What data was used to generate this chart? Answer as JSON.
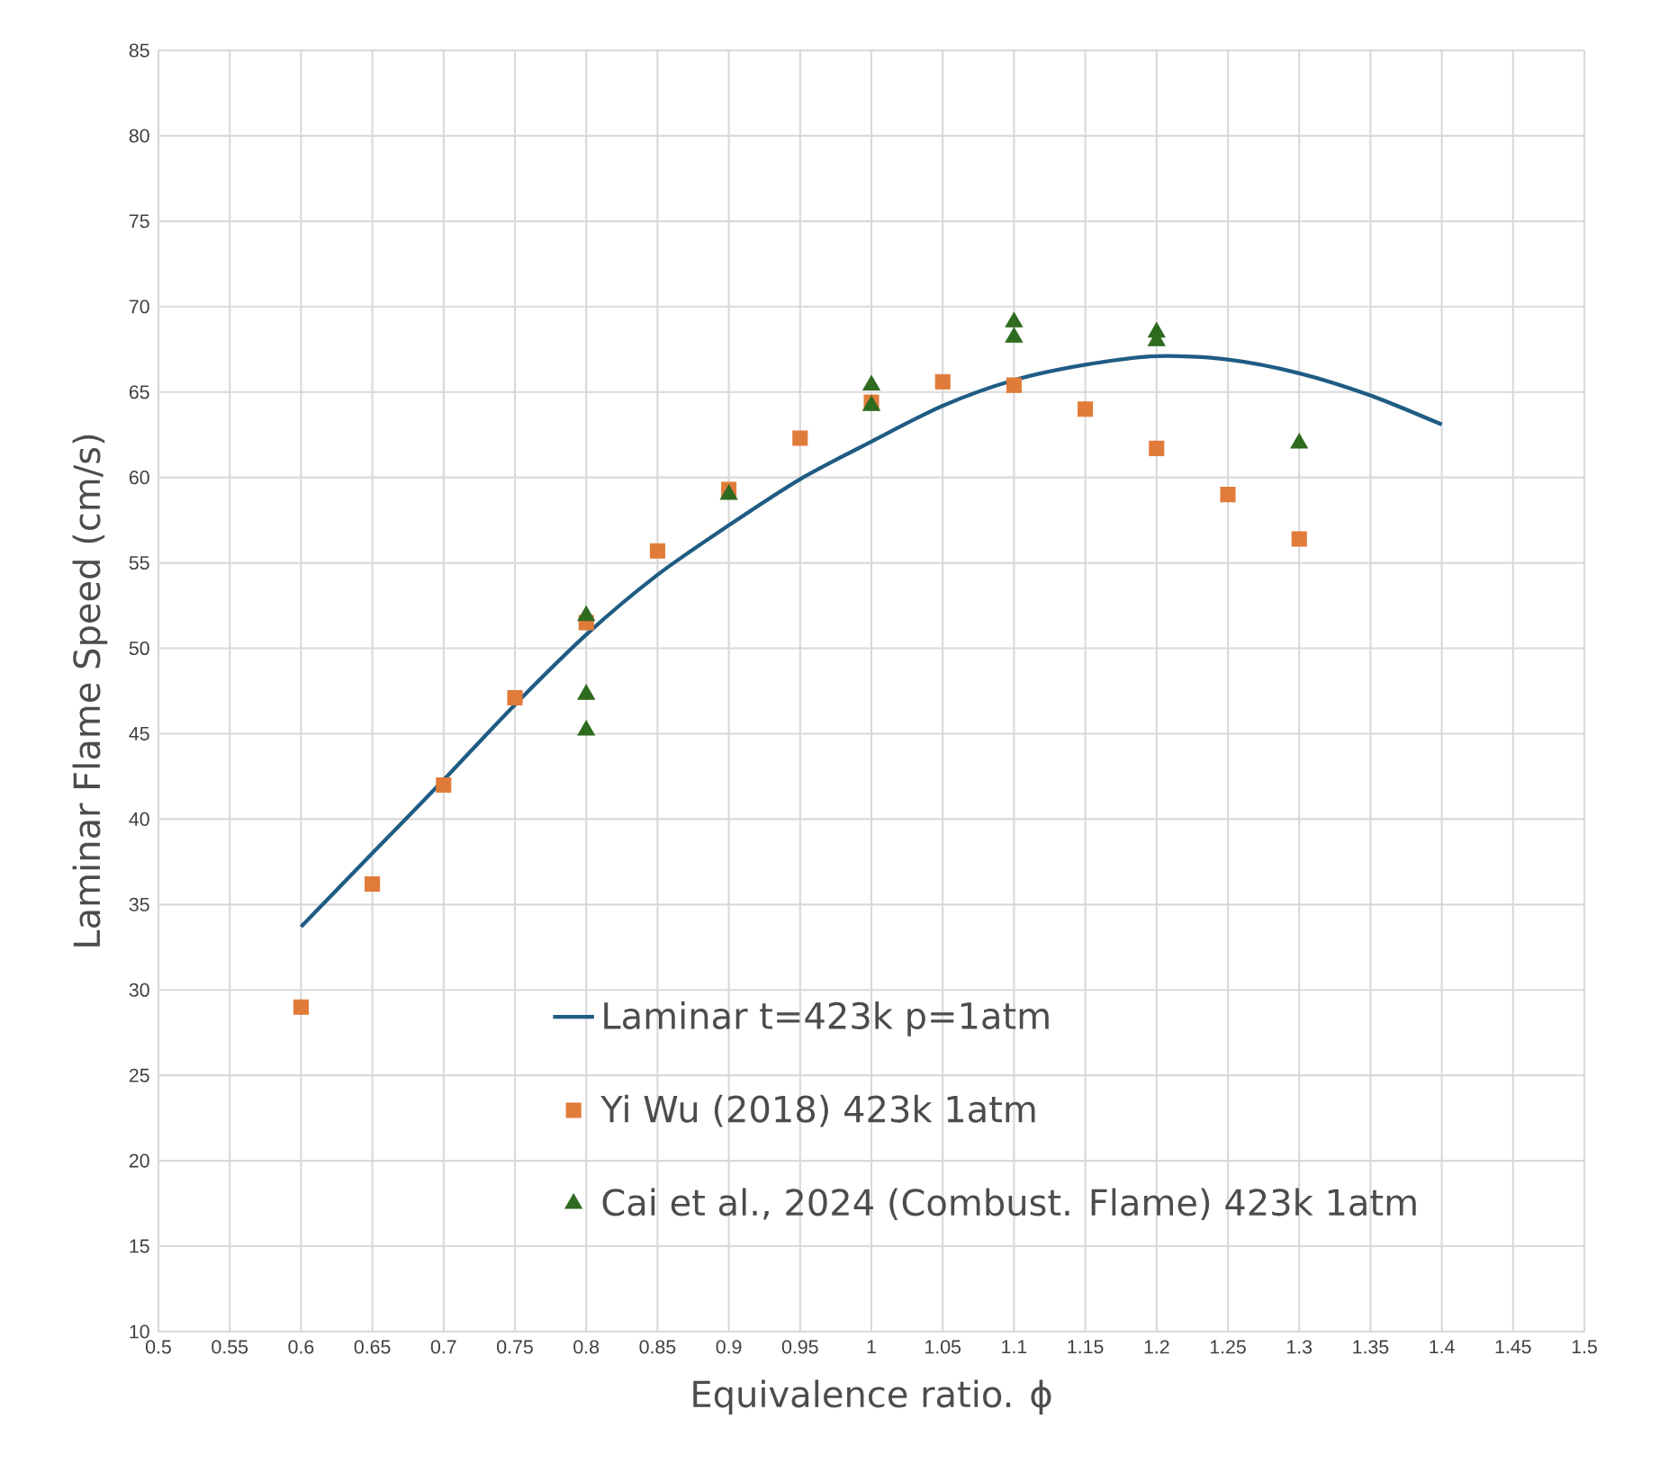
{
  "chart_data": {
    "type": "scatter",
    "xlabel": "Equivalence ratio. ϕ",
    "ylabel": "Laminar Flame Speed (cm/s)",
    "xlim": [
      0.5,
      1.5
    ],
    "ylim": [
      10,
      85
    ],
    "xticks": [
      {
        "value": 0.5,
        "label": "0.5"
      },
      {
        "value": 0.55,
        "label": "0.55"
      },
      {
        "value": 0.6,
        "label": "0.6"
      },
      {
        "value": 0.65,
        "label": "0.65"
      },
      {
        "value": 0.7,
        "label": "0.7"
      },
      {
        "value": 0.75,
        "label": "0.75"
      },
      {
        "value": 0.8,
        "label": "0.8"
      },
      {
        "value": 0.85,
        "label": "0.85"
      },
      {
        "value": 0.9,
        "label": "0.9"
      },
      {
        "value": 0.95,
        "label": "0.95"
      },
      {
        "value": 1,
        "label": "1"
      },
      {
        "value": 1.05,
        "label": "1.05"
      },
      {
        "value": 1.1,
        "label": "1.1"
      },
      {
        "value": 1.15,
        "label": "1.15"
      },
      {
        "value": 1.2,
        "label": "1.2"
      },
      {
        "value": 1.25,
        "label": "1.25"
      },
      {
        "value": 1.3,
        "label": "1.3"
      },
      {
        "value": 1.35,
        "label": "1.35"
      },
      {
        "value": 1.4,
        "label": "1.4"
      },
      {
        "value": 1.45,
        "label": "1.45"
      },
      {
        "value": 1.5,
        "label": "1.5"
      }
    ],
    "yticks": [
      10,
      15,
      20,
      25,
      30,
      35,
      40,
      45,
      50,
      55,
      60,
      65,
      70,
      75,
      80,
      85
    ],
    "grid": true,
    "legend": "bottom right",
    "series": [
      {
        "name": "Laminar t=423k p=1atm",
        "type": "line",
        "marker": "none",
        "color": "#1f5c84",
        "x": [
          0.6,
          0.65,
          0.7,
          0.75,
          0.8,
          0.85,
          0.9,
          0.95,
          1.0,
          1.05,
          1.1,
          1.15,
          1.2,
          1.25,
          1.3,
          1.35,
          1.4
        ],
        "values": [
          33.7,
          38.0,
          42.3,
          46.7,
          50.8,
          54.3,
          57.2,
          59.9,
          62.1,
          64.2,
          65.7,
          66.6,
          67.1,
          66.9,
          66.1,
          64.8,
          63.1
        ]
      },
      {
        "name": "Yi Wu (2018) 423k 1atm",
        "marker": "square",
        "color": "#e07b39",
        "x": [
          0.6,
          0.65,
          0.7,
          0.75,
          0.8,
          0.85,
          0.9,
          0.95,
          1.0,
          1.05,
          1.1,
          1.15,
          1.2,
          1.25,
          1.3
        ],
        "values": [
          29.0,
          36.2,
          42.0,
          47.1,
          51.5,
          55.7,
          59.3,
          62.3,
          64.4,
          65.6,
          65.4,
          64.0,
          61.7,
          59.0,
          56.4
        ]
      },
      {
        "name": "Cai et al., 2024 (Combust. Flame) 423k 1atm",
        "marker": "triangle",
        "color": "#2e6b1f",
        "x": [
          0.8,
          0.8,
          0.8,
          0.9,
          1.0,
          1.0,
          1.1,
          1.1,
          1.2,
          1.2,
          1.3
        ],
        "values": [
          51.9,
          47.3,
          45.2,
          59.0,
          65.4,
          64.2,
          69.1,
          68.2,
          68.5,
          68.0,
          62.0
        ]
      }
    ]
  }
}
